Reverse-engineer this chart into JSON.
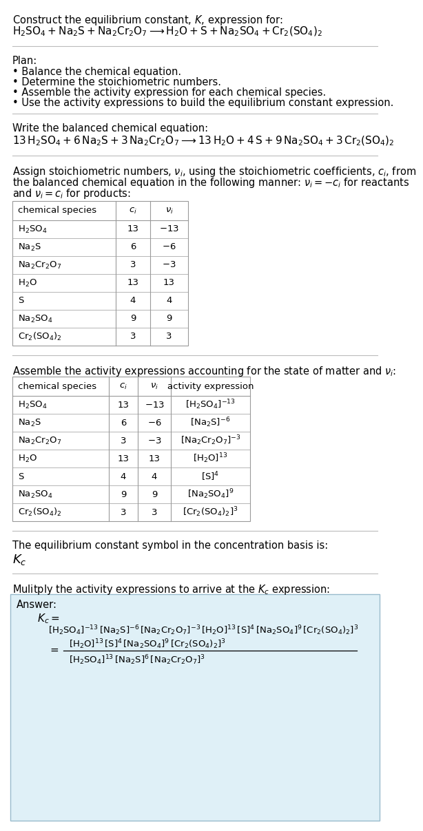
{
  "bg_color": "#ffffff",
  "answer_bg_color": "#dff0f7",
  "answer_border_color": "#99bbcc",
  "text_color": "#000000",
  "title_line1": "Construct the equilibrium constant, $K$, expression for:",
  "title_chem": "$\\mathrm{H_2SO_4 + Na_2S + Na_2Cr_2O_7 \\longrightarrow H_2O + S + Na_2SO_4 + Cr_2(SO_4)_2}$",
  "plan_header": "Plan:",
  "plan_items": [
    "\\bullet  Balance the chemical equation.",
    "\\bullet  Determine the stoichiometric numbers.",
    "\\bullet  Assemble the activity expression for each chemical species.",
    "\\bullet  Use the activity expressions to build the equilibrium constant expression."
  ],
  "balanced_header": "Write the balanced chemical equation:",
  "balanced_eq": "$\\mathrm{13\\,H_2SO_4 + 6\\,Na_2S + 3\\,Na_2Cr_2O_7 \\longrightarrow 13\\,H_2O + 4\\,S + 9\\,Na_2SO_4 + 3\\,Cr_2(SO_4)_2}$",
  "stoich_intro": "Assign stoichiometric numbers, $\\nu_i$, using the stoichiometric coefficients, $c_i$, from\nthe balanced chemical equation in the following manner: $\\nu_i = -c_i$ for reactants\nand $\\nu_i = c_i$ for products:",
  "table1_col_headers": [
    "chemical species",
    "$c_i$",
    "$\\nu_i$"
  ],
  "table1_rows": [
    [
      "$\\mathrm{H_2SO_4}$",
      "13",
      "$-13$"
    ],
    [
      "$\\mathrm{Na_2S}$",
      "6",
      "$-6$"
    ],
    [
      "$\\mathrm{Na_2Cr_2O_7}$",
      "3",
      "$-3$"
    ],
    [
      "$\\mathrm{H_2O}$",
      "13",
      "13"
    ],
    [
      "$\\mathrm{S}$",
      "4",
      "4"
    ],
    [
      "$\\mathrm{Na_2SO_4}$",
      "9",
      "9"
    ],
    [
      "$\\mathrm{Cr_2(SO_4)_2}$",
      "3",
      "3"
    ]
  ],
  "activity_intro": "Assemble the activity expressions accounting for the state of matter and $\\nu_i$:",
  "table2_col_headers": [
    "chemical species",
    "$c_i$",
    "$\\nu_i$",
    "activity expression"
  ],
  "table2_rows": [
    [
      "$\\mathrm{H_2SO_4}$",
      "13",
      "$-13$",
      "$[\\mathrm{H_2SO_4}]^{-13}$"
    ],
    [
      "$\\mathrm{Na_2S}$",
      "6",
      "$-6$",
      "$[\\mathrm{Na_2S}]^{-6}$"
    ],
    [
      "$\\mathrm{Na_2Cr_2O_7}$",
      "3",
      "$-3$",
      "$[\\mathrm{Na_2Cr_2O_7}]^{-3}$"
    ],
    [
      "$\\mathrm{H_2O}$",
      "13",
      "13",
      "$[\\mathrm{H_2O}]^{13}$"
    ],
    [
      "$\\mathrm{S}$",
      "4",
      "4",
      "$[\\mathrm{S}]^{4}$"
    ],
    [
      "$\\mathrm{Na_2SO_4}$",
      "9",
      "9",
      "$[\\mathrm{Na_2SO_4}]^{9}$"
    ],
    [
      "$\\mathrm{Cr_2(SO_4)_2}$",
      "3",
      "3",
      "$[\\mathrm{Cr_2(SO_4)_2}]^{3}$"
    ]
  ],
  "kc_header": "The equilibrium constant symbol in the concentration basis is:",
  "kc_symbol": "$K_c$",
  "multiply_header": "Mulitply the activity expressions to arrive at the $K_c$ expression:",
  "answer_label": "Answer:",
  "kc_eq_label": "$K_c =$",
  "kc_full_line": "$[\\mathrm{H_2SO_4}]^{-13}\\,[\\mathrm{Na_2S}]^{-6}\\,[\\mathrm{Na_2Cr_2O_7}]^{-3}\\,[\\mathrm{H_2O}]^{13}\\,[\\mathrm{S}]^{4}\\,[\\mathrm{Na_2SO_4}]^{9}\\,[\\mathrm{Cr_2(SO_4)_2}]^{3}$",
  "kc_num": "$[\\mathrm{H_2O}]^{13}\\,[\\mathrm{S}]^{4}\\,[\\mathrm{Na_2SO_4}]^{9}\\,[\\mathrm{Cr_2(SO_4)_2}]^{3}$",
  "kc_den": "$[\\mathrm{H_2SO_4}]^{13}\\,[\\mathrm{Na_2S}]^{6}\\,[\\mathrm{Na_2Cr_2O_7}]^{3}$"
}
